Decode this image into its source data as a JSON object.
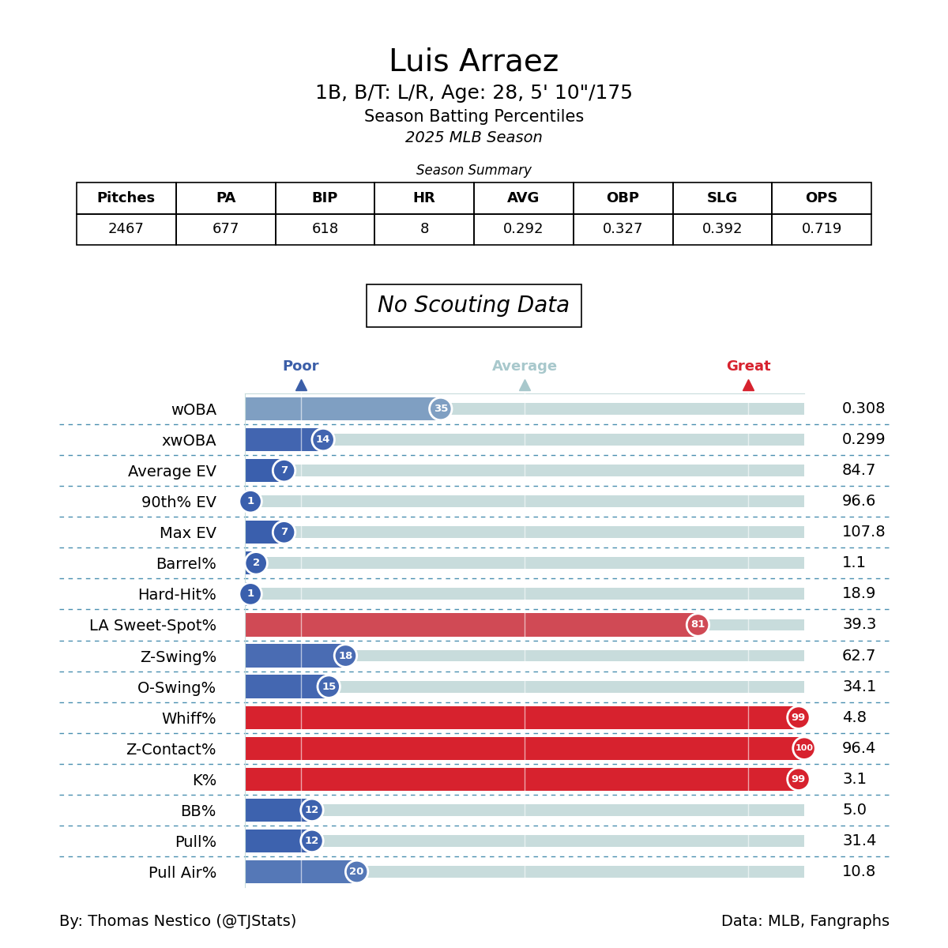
{
  "header": {
    "title": "Luis Arraez",
    "subtitle": "1B, B/T: L/R, Age: 28, 5' 10\"/175",
    "description": "Season Batting Percentiles",
    "season": "2025 MLB Season"
  },
  "table": {
    "title": "Season Summary",
    "columns": [
      "Pitches",
      "PA",
      "BIP",
      "HR",
      "AVG",
      "OBP",
      "SLG",
      "OPS"
    ],
    "rows": [
      [
        "2467",
        "677",
        "618",
        "8",
        "0.292",
        "0.327",
        "0.392",
        "0.719"
      ]
    ]
  },
  "note": "No Scouting Data",
  "chart_data": {
    "type": "bar",
    "orientation": "horizontal",
    "categories": [
      "wOBA",
      "xwOBA",
      "Average EV",
      "90th% EV",
      "Max EV",
      "Barrel%",
      "Hard-Hit%",
      "LA Sweet-Spot%",
      "Z-Swing%",
      "O-Swing%",
      "Whiff%",
      "Z-Contact%",
      "K%",
      "BB%",
      "Pull%",
      "Pull Air%"
    ],
    "values": [
      35,
      14,
      7,
      1,
      7,
      2,
      1,
      81,
      18,
      15,
      99,
      100,
      99,
      12,
      12,
      20
    ],
    "colors": [
      "#7f9fc2",
      "#4265b0",
      "#3a5fad",
      "#3a5fad",
      "#3a5fad",
      "#3a5fad",
      "#3a5fad",
      "#d04a55",
      "#4a6cb3",
      "#4467b1",
      "#d7222e",
      "#d7222e",
      "#d7222e",
      "#3d62ae",
      "#3d62ae",
      "#5578b7"
    ],
    "stat_values": [
      "0.308",
      "0.299",
      "84.7",
      "96.6",
      "107.8",
      "1.1",
      "18.9",
      "39.3",
      "62.7",
      "34.1",
      "4.8",
      "96.4",
      "3.1",
      "5.0",
      "31.4",
      "10.8"
    ],
    "xlim": [
      0,
      100
    ],
    "xticks": [
      {
        "value": 10,
        "label": "Poor"
      },
      {
        "value": 50,
        "label": "Average"
      },
      {
        "value": 90,
        "label": "Great"
      }
    ],
    "grid": true,
    "data_labels": true
  },
  "footer": {
    "left": "By: Thomas Nestico (@TJStats)",
    "right": "Data: MLB, Fangraphs"
  }
}
